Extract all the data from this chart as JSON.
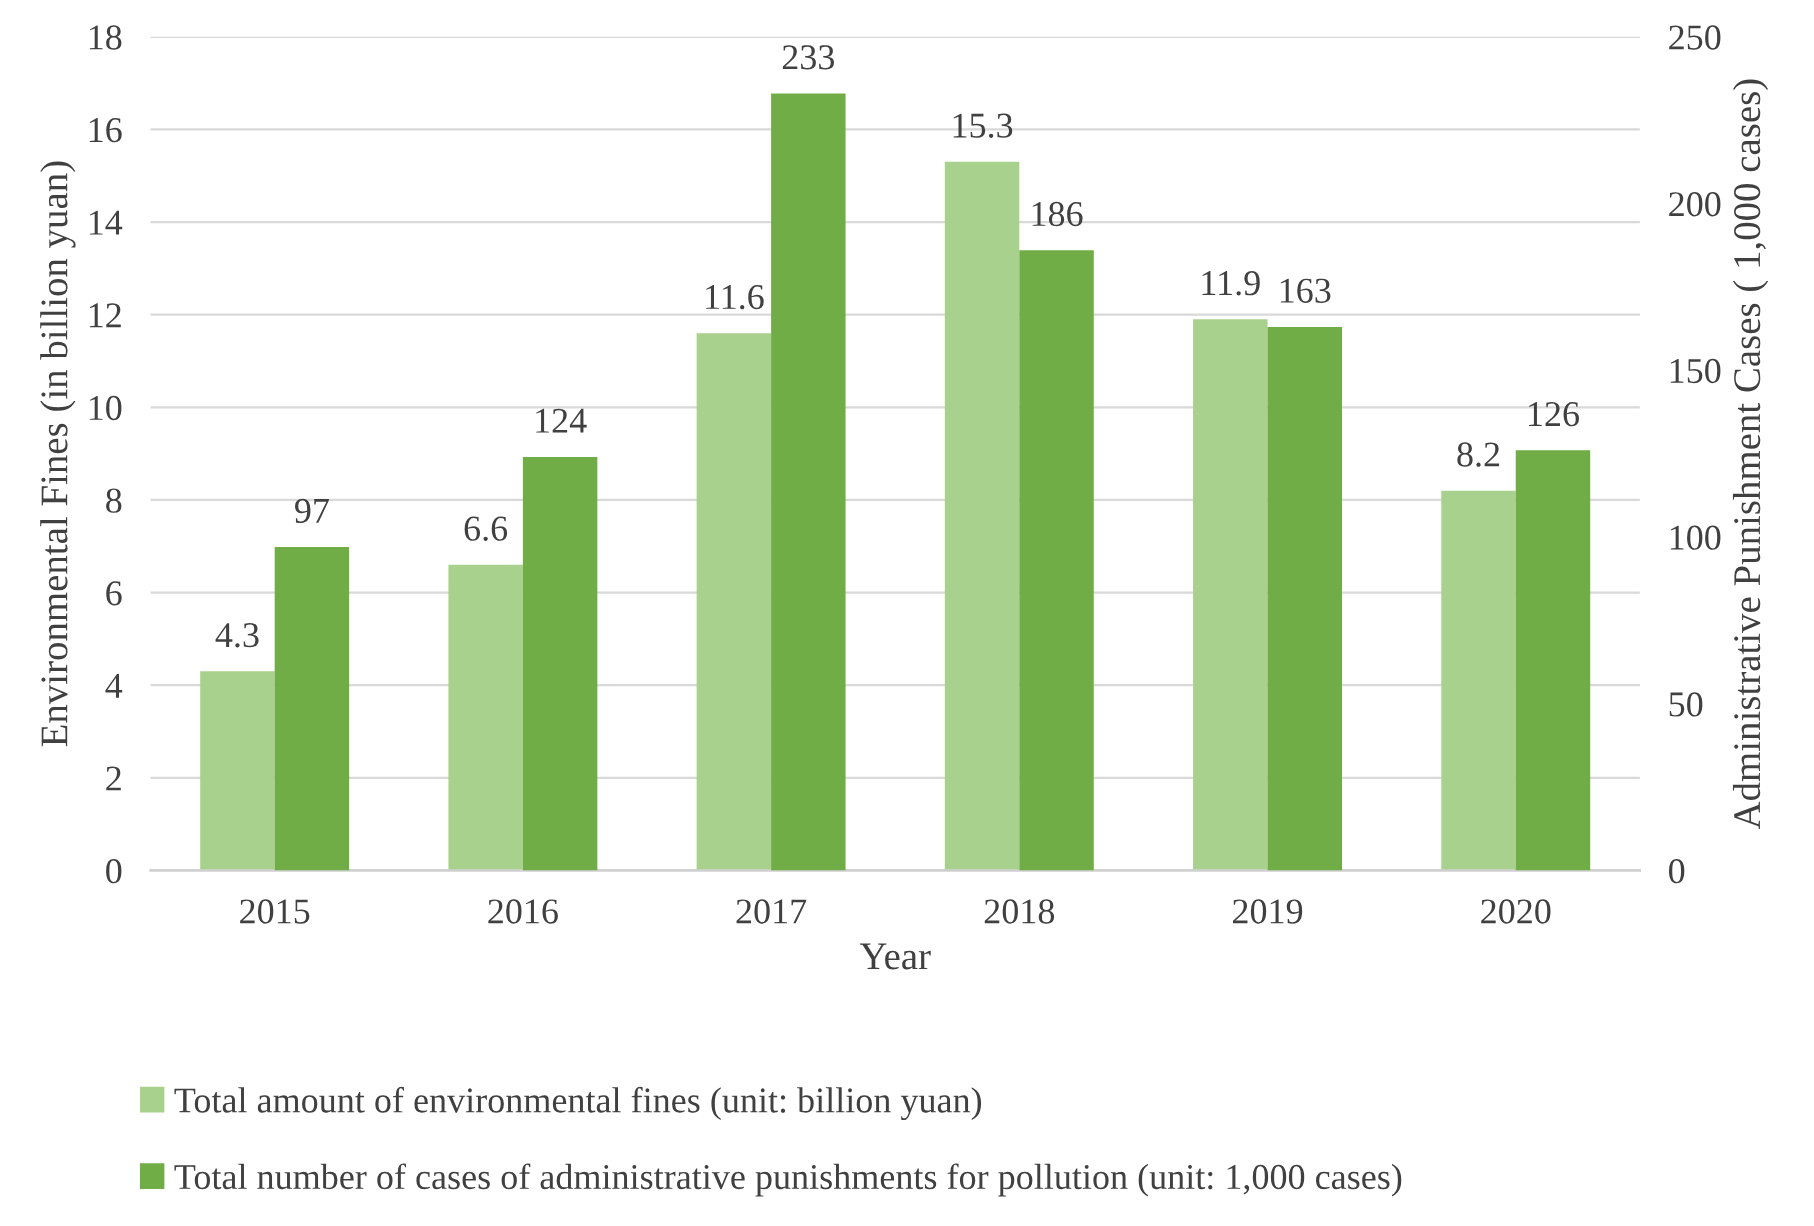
{
  "chart_data": {
    "type": "bar",
    "xlabel": "Year",
    "ylabel": "Environmental Fines (in billion yuan)",
    "y2label": "Administrative Punishment Cases ( 1,000 cases)",
    "categories": [
      "2015",
      "2016",
      "2017",
      "2018",
      "2019",
      "2020"
    ],
    "series": [
      {
        "name": "Total amount of environmental fines (unit: billion yuan)",
        "color": "#a9d18e",
        "values": [
          4.3,
          6.6,
          11.6,
          15.3,
          11.9,
          8.2
        ]
      },
      {
        "name": "Total number of cases of administrative punishments for pollution (unit: 1,000 cases)",
        "color": "#70ad47",
        "values": [
          97,
          124,
          233,
          186,
          163,
          126
        ],
        "axis": "y2"
      }
    ],
    "ylim": [
      0,
      18
    ],
    "yticks": [
      0,
      2,
      4,
      6,
      8,
      10,
      12,
      14,
      16,
      18
    ],
    "y2lim": [
      0,
      250
    ],
    "y2ticks": [
      0,
      50,
      100,
      150,
      200,
      250
    ],
    "grid": "y",
    "legend": "bottom",
    "data_labels": true
  }
}
